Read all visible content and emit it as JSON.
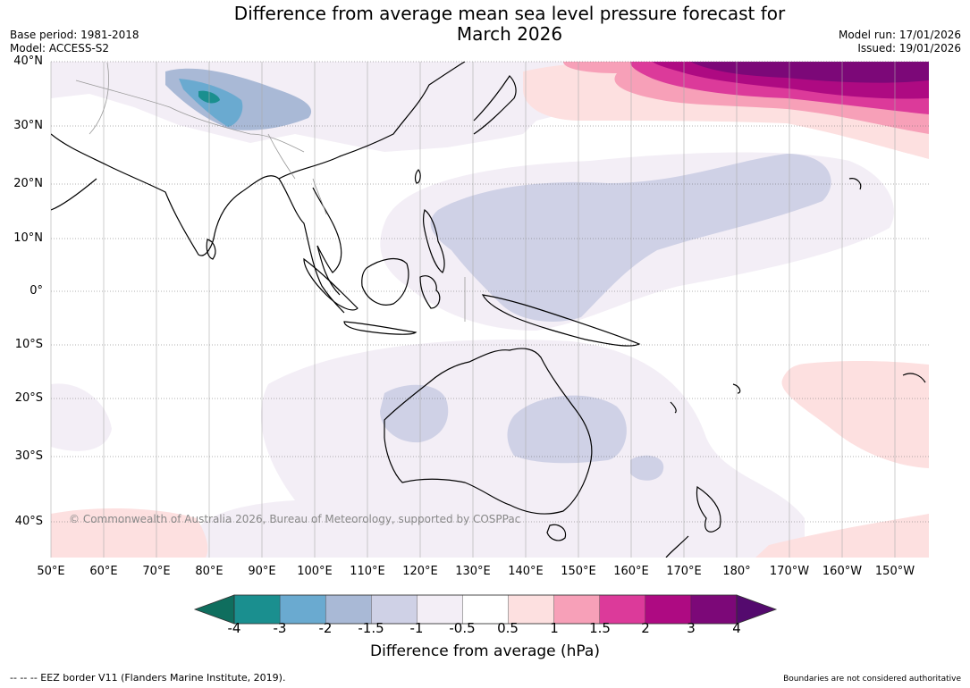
{
  "title": {
    "line1": "Difference from average mean sea level pressure forecast for",
    "line2": "March 2026"
  },
  "meta": {
    "base_period": "Base period: 1981-2018",
    "model": "Model: ACCESS-S2",
    "model_run": "Model run: 17/01/2026",
    "issued": "Issued: 19/01/2026"
  },
  "map": {
    "lat_labels": [
      "40°N",
      "30°N",
      "20°N",
      "10°N",
      "0°",
      "10°S",
      "20°S",
      "30°S",
      "40°S"
    ],
    "lon_labels": [
      "50°E",
      "60°E",
      "70°E",
      "80°E",
      "90°E",
      "100°E",
      "110°E",
      "120°E",
      "130°E",
      "140°E",
      "150°E",
      "160°E",
      "170°E",
      "180°",
      "170°W",
      "160°W",
      "150°W"
    ],
    "copyright": "© Commonwealth of Australia 2026, Bureau of Meteorology, supported by COSPPac"
  },
  "colorbar": {
    "ticks": [
      "-4",
      "-3",
      "-2",
      "-1.5",
      "-1",
      "-0.5",
      "0.5",
      "1",
      "1.5",
      "2",
      "3",
      "4"
    ],
    "colors": [
      "#1a8f8f",
      "#6aaad0",
      "#a9b9d6",
      "#cfd1e6",
      "#f3eef6",
      "#ffffff",
      "#fde0e0",
      "#f7a0b8",
      "#dc3a9a",
      "#ae0a82",
      "#7c0878"
    ],
    "under_color": "#0f6e5e",
    "over_color": "#540a6e",
    "label": "Difference from average (hPa)"
  },
  "footer": {
    "eez": "-- -- -- EEZ border V11 (Flanders Marine Institute, 2019).",
    "boundaries": "Boundaries are not considered authoritative"
  }
}
